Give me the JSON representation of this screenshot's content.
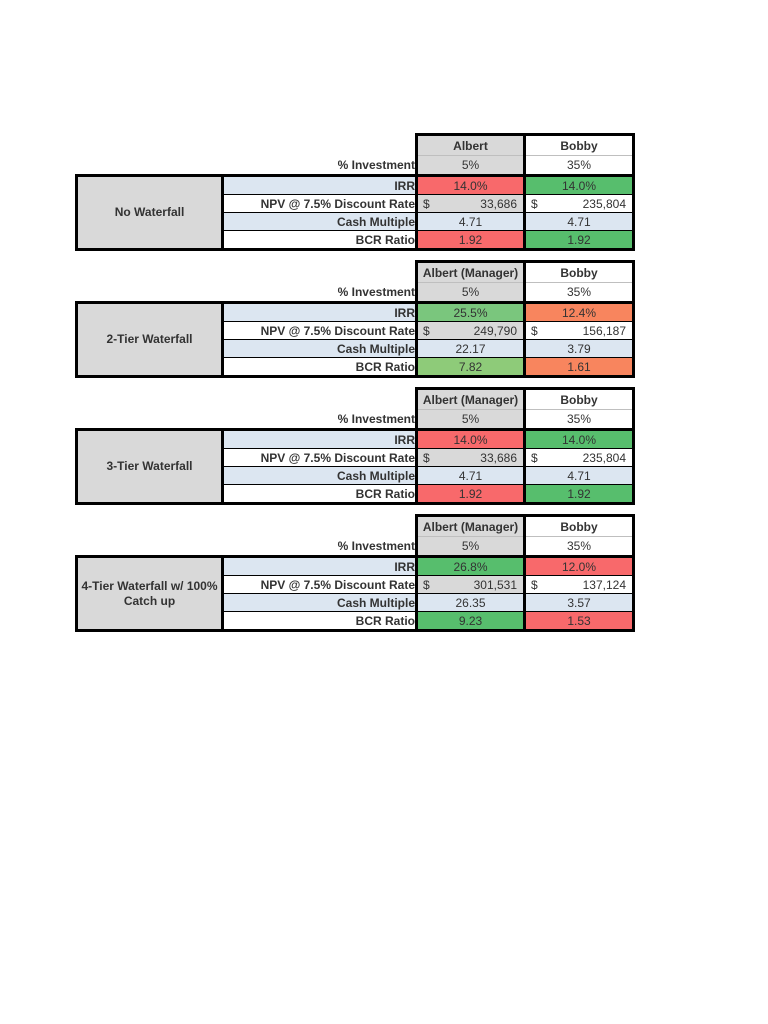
{
  "colors": {
    "red": "#F8696B",
    "green": "#57BE6D",
    "green_light": "#7AC67D",
    "green_lighter": "#8ECB79",
    "orange": "#F8855E",
    "gray": "#D9D9D9",
    "blue": "#DCE6F1",
    "white": "#FFFFFF"
  },
  "currency_symbol": "$",
  "tables": [
    {
      "group_label": "No Waterfall",
      "columns": [
        {
          "header": "Albert",
          "header_style": "gray"
        },
        {
          "header": "Bobby",
          "header_style": "white"
        }
      ],
      "percent_row": {
        "label": "% Investment",
        "values": [
          "5%",
          "35%"
        ],
        "styles": [
          "gray",
          "white"
        ]
      },
      "rows": [
        {
          "label": "IRR",
          "label_style": "blue",
          "currency": false,
          "values": [
            "14.0%",
            "14.0%"
          ],
          "styles": [
            "red",
            "green"
          ]
        },
        {
          "label": "NPV @ 7.5% Discount Rate",
          "label_style": "white",
          "currency": true,
          "values": [
            "33,686",
            "235,804"
          ],
          "styles": [
            "gray",
            "white"
          ]
        },
        {
          "label": "Cash Multiple",
          "label_style": "blue",
          "currency": false,
          "values": [
            "4.71",
            "4.71"
          ],
          "styles": [
            "blue",
            "blue"
          ]
        },
        {
          "label": "BCR Ratio",
          "label_style": "white",
          "currency": false,
          "values": [
            "1.92",
            "1.92"
          ],
          "styles": [
            "red",
            "green"
          ]
        }
      ]
    },
    {
      "group_label": "2-Tier Waterfall",
      "columns": [
        {
          "header": "Albert (Manager)",
          "header_style": "gray"
        },
        {
          "header": "Bobby",
          "header_style": "white"
        }
      ],
      "percent_row": {
        "label": "% Investment",
        "values": [
          "5%",
          "35%"
        ],
        "styles": [
          "gray",
          "white"
        ]
      },
      "rows": [
        {
          "label": "IRR",
          "label_style": "blue",
          "currency": false,
          "values": [
            "25.5%",
            "12.4%"
          ],
          "styles": [
            "green_light",
            "orange"
          ]
        },
        {
          "label": "NPV @ 7.5% Discount Rate",
          "label_style": "white",
          "currency": true,
          "values": [
            "249,790",
            "156,187"
          ],
          "styles": [
            "gray",
            "white"
          ]
        },
        {
          "label": "Cash Multiple",
          "label_style": "blue",
          "currency": false,
          "values": [
            "22.17",
            "3.79"
          ],
          "styles": [
            "blue",
            "blue"
          ]
        },
        {
          "label": "BCR Ratio",
          "label_style": "white",
          "currency": false,
          "values": [
            "7.82",
            "1.61"
          ],
          "styles": [
            "green_lighter",
            "orange"
          ]
        }
      ]
    },
    {
      "group_label": "3-Tier Waterfall",
      "columns": [
        {
          "header": "Albert (Manager)",
          "header_style": "gray"
        },
        {
          "header": "Bobby",
          "header_style": "white"
        }
      ],
      "percent_row": {
        "label": "% Investment",
        "values": [
          "5%",
          "35%"
        ],
        "styles": [
          "gray",
          "white"
        ]
      },
      "rows": [
        {
          "label": "IRR",
          "label_style": "blue",
          "currency": false,
          "values": [
            "14.0%",
            "14.0%"
          ],
          "styles": [
            "red",
            "green"
          ]
        },
        {
          "label": "NPV @ 7.5% Discount Rate",
          "label_style": "white",
          "currency": true,
          "values": [
            "33,686",
            "235,804"
          ],
          "styles": [
            "gray",
            "white"
          ]
        },
        {
          "label": "Cash Multiple",
          "label_style": "blue",
          "currency": false,
          "values": [
            "4.71",
            "4.71"
          ],
          "styles": [
            "blue",
            "blue"
          ]
        },
        {
          "label": "BCR Ratio",
          "label_style": "white",
          "currency": false,
          "values": [
            "1.92",
            "1.92"
          ],
          "styles": [
            "red",
            "green"
          ]
        }
      ]
    },
    {
      "group_label": "4-Tier Waterfall w/ 100% Catch up",
      "columns": [
        {
          "header": "Albert (Manager)",
          "header_style": "gray"
        },
        {
          "header": "Bobby",
          "header_style": "white"
        }
      ],
      "percent_row": {
        "label": "% Investment",
        "values": [
          "5%",
          "35%"
        ],
        "styles": [
          "gray",
          "white"
        ]
      },
      "rows": [
        {
          "label": "IRR",
          "label_style": "blue",
          "currency": false,
          "values": [
            "26.8%",
            "12.0%"
          ],
          "styles": [
            "green",
            "red"
          ]
        },
        {
          "label": "NPV @ 7.5% Discount Rate",
          "label_style": "white",
          "currency": true,
          "values": [
            "301,531",
            "137,124"
          ],
          "styles": [
            "gray",
            "white"
          ]
        },
        {
          "label": "Cash Multiple",
          "label_style": "blue",
          "currency": false,
          "values": [
            "26.35",
            "3.57"
          ],
          "styles": [
            "blue",
            "blue"
          ]
        },
        {
          "label": "BCR Ratio",
          "label_style": "white",
          "currency": false,
          "values": [
            "9.23",
            "1.53"
          ],
          "styles": [
            "green",
            "red"
          ]
        }
      ]
    }
  ]
}
